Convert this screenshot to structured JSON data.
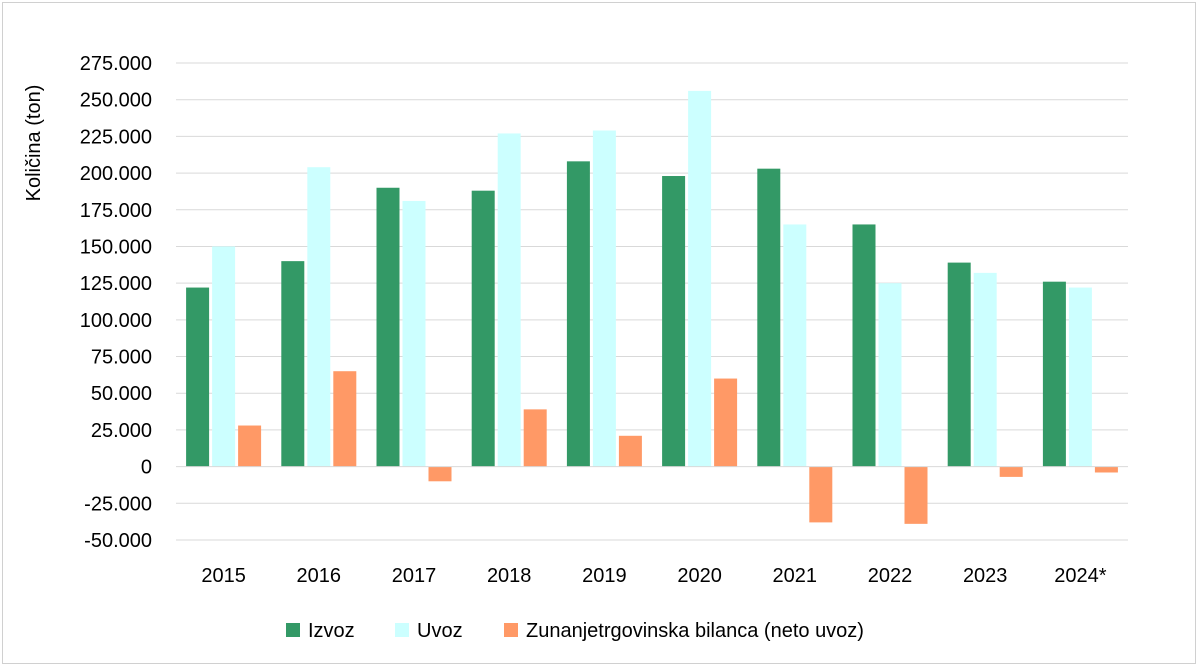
{
  "chart_data": {
    "type": "bar",
    "title": "",
    "xlabel": "",
    "ylabel": "Količina (ton)",
    "ylim": [
      -50000,
      275000
    ],
    "ytick_values": [
      -50000,
      -25000,
      0,
      25000,
      50000,
      75000,
      100000,
      125000,
      150000,
      175000,
      200000,
      225000,
      250000,
      275000
    ],
    "ytick_labels": [
      "-50.000",
      "-25.000",
      "0",
      "25.000",
      "50.000",
      "75.000",
      "100.000",
      "125.000",
      "150.000",
      "175.000",
      "200.000",
      "225.000",
      "250.000",
      "275.000"
    ],
    "grid": true,
    "legend_position": "bottom",
    "categories": [
      "2015",
      "2016",
      "2017",
      "2018",
      "2019",
      "2020",
      "2021",
      "2022",
      "2023",
      "2024*"
    ],
    "series": [
      {
        "name": "Izvoz",
        "color": "#339966",
        "values": [
          122000,
          140000,
          190000,
          188000,
          208000,
          198000,
          203000,
          165000,
          139000,
          126000
        ]
      },
      {
        "name": "Uvoz",
        "color": "#ccffff",
        "values": [
          150000,
          204000,
          181000,
          227000,
          229000,
          256000,
          165000,
          125000,
          132000,
          122000
        ]
      },
      {
        "name": "Zunanjetrgovinska bilanca (neto uvoz)",
        "color": "#ff9966",
        "values": [
          28000,
          65000,
          -10000,
          39000,
          21000,
          60000,
          -38000,
          -39000,
          -7000,
          -4000
        ]
      }
    ]
  }
}
